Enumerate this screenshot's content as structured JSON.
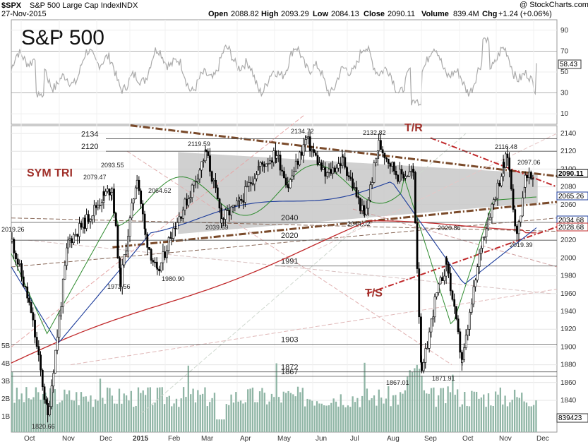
{
  "header": {
    "symbol": "$SPX",
    "name": "S&P 500 Large Cap Index",
    "exchange": "INDX",
    "date": "27-Nov-2015",
    "open_label": "Open",
    "open": "2088.82",
    "high_label": "High",
    "high": "2093.29",
    "low_label": "Low",
    "low": "2084.13",
    "close_label": "Close",
    "close": "2090.11",
    "volume_label": "Volume",
    "volume": "839.4M",
    "chg_label": "Chg",
    "chg": "+1.24 (+0.06%)",
    "watermark": "@ StockCharts.com"
  },
  "title_overlay": "S&P 500",
  "chart_data": {
    "type": "line",
    "subtype": "candlestick with volume and RSI panel",
    "title": "S&P 500",
    "x_labels": [
      "Oct",
      "Nov",
      "Dec",
      "2015",
      "Feb",
      "Mar",
      "Apr",
      "May",
      "Jun",
      "Jul",
      "Aug",
      "Sep",
      "Oct",
      "Nov",
      "Dec"
    ],
    "y_ticks": [
      1840,
      1860,
      1880,
      1900,
      1920,
      1940,
      1960,
      1980,
      2000,
      2020,
      2040,
      2060,
      2080,
      2100,
      2120,
      2140
    ],
    "ylim": [
      1820,
      2160
    ],
    "rsi_ticks": [
      10,
      30,
      50,
      70,
      90
    ],
    "rsi_value": "58.43",
    "volume_ticks": [
      "1B",
      "2B",
      "3B",
      "4B",
      "5B"
    ],
    "volume_value": "839423",
    "price_tags": [
      {
        "value": "2090.11",
        "kind": "close",
        "color": "#000000"
      },
      {
        "value": "2065.26",
        "kind": "ma",
        "color": "#1a3a9a"
      },
      {
        "value": "2034.68",
        "kind": "ma",
        "color": "#1a3a9a"
      },
      {
        "value": "2028.68",
        "kind": "ma",
        "color": "#c0282a"
      }
    ],
    "price_close_points": [
      {
        "x": "Sep-15",
        "y": 2019
      },
      {
        "x": "Oct-1",
        "y": 1940
      },
      {
        "x": "Oct-15",
        "y": 1821
      },
      {
        "x": "Nov-1",
        "y": 2018
      },
      {
        "x": "Nov-15",
        "y": 2040
      },
      {
        "x": "Dec-1",
        "y": 2070
      },
      {
        "x": "Dec-8",
        "y": 2079
      },
      {
        "x": "Dec-15",
        "y": 1973
      },
      {
        "x": "Dec-29",
        "y": 2093
      },
      {
        "x": "Jan-5",
        "y": 2025
      },
      {
        "x": "Jan-15",
        "y": 1981
      },
      {
        "x": "Jan-27",
        "y": 2029
      },
      {
        "x": "Feb-10",
        "y": 2068
      },
      {
        "x": "Feb-25",
        "y": 2119
      },
      {
        "x": "Mar-10",
        "y": 2044
      },
      {
        "x": "Mar-25",
        "y": 2061
      },
      {
        "x": "Apr-10",
        "y": 2102
      },
      {
        "x": "Apr-25",
        "y": 2117
      },
      {
        "x": "May-5",
        "y": 2081
      },
      {
        "x": "May-20",
        "y": 2134
      },
      {
        "x": "Jun-5",
        "y": 2092
      },
      {
        "x": "Jun-20",
        "y": 2110
      },
      {
        "x": "Jul-8",
        "y": 2046
      },
      {
        "x": "Jul-20",
        "y": 2128
      },
      {
        "x": "Aug-5",
        "y": 2093
      },
      {
        "x": "Aug-18",
        "y": 2096
      },
      {
        "x": "Aug-25",
        "y": 1867
      },
      {
        "x": "Sep-5",
        "y": 1951
      },
      {
        "x": "Sep-15",
        "y": 1995
      },
      {
        "x": "Sep-28",
        "y": 1882
      },
      {
        "x": "Oct-15",
        "y": 2023
      },
      {
        "x": "Nov-2",
        "y": 2104
      },
      {
        "x": "Nov-5",
        "y": 2116
      },
      {
        "x": "Nov-13",
        "y": 2023
      },
      {
        "x": "Nov-20",
        "y": 2089
      },
      {
        "x": "Nov-27",
        "y": 2090
      }
    ],
    "level_lines": [
      {
        "label": "2134",
        "value": 2134
      },
      {
        "label": "2120",
        "value": 2120
      },
      {
        "label": "2040",
        "value": 2040
      },
      {
        "label": "2020",
        "value": 2020
      },
      {
        "label": "1991",
        "value": 1991
      },
      {
        "label": "1903",
        "value": 1903
      },
      {
        "label": "1872",
        "value": 1872
      },
      {
        "label": "1867",
        "value": 1867
      }
    ],
    "peak_labels": [
      {
        "text": "2019.26"
      },
      {
        "text": "1820.66"
      },
      {
        "text": "2079.47"
      },
      {
        "text": "2093.55"
      },
      {
        "text": "1972.56"
      },
      {
        "text": "2064.62"
      },
      {
        "text": "1980.90"
      },
      {
        "text": "2119.59"
      },
      {
        "text": "2039.69"
      },
      {
        "text": "2134.72"
      },
      {
        "text": "2044.02"
      },
      {
        "text": "2132.82"
      },
      {
        "text": "1867.01"
      },
      {
        "text": "2020.86"
      },
      {
        "text": "1871.91"
      },
      {
        "text": "2116.48"
      },
      {
        "text": "2097.06"
      },
      {
        "text": "2019.39"
      }
    ],
    "annotations": [
      {
        "text": "SYM TRI",
        "color": "#8a2e2a"
      },
      {
        "text": "T/R",
        "color": "#c0282a"
      },
      {
        "text": "T/S",
        "color": "#c0282a"
      }
    ]
  }
}
